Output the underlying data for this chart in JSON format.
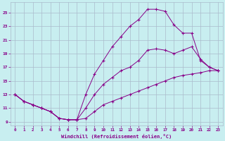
{
  "bg_color": "#c8eef0",
  "line_color": "#880088",
  "grid_color": "#aabbcc",
  "xlabel": "Windchill (Refroidissement éolien,°C)",
  "ylabel_ticks": [
    9,
    11,
    13,
    15,
    17,
    19,
    21,
    23,
    25
  ],
  "xlabel_ticks": [
    0,
    1,
    2,
    3,
    4,
    5,
    6,
    7,
    8,
    9,
    10,
    11,
    12,
    13,
    14,
    15,
    16,
    17,
    18,
    19,
    20,
    21,
    22,
    23
  ],
  "xlim": [
    -0.5,
    23.5
  ],
  "ylim": [
    8.5,
    26.5
  ],
  "curves": [
    {
      "x": [
        0,
        1,
        2,
        3,
        4,
        5,
        6,
        7,
        8,
        9,
        10,
        11,
        12,
        13,
        14,
        15,
        16,
        17,
        18,
        19,
        20,
        21,
        22,
        23
      ],
      "y": [
        13,
        12,
        11.5,
        11,
        10.5,
        9.5,
        9.3,
        9.3,
        13,
        16,
        18,
        20,
        21.5,
        23,
        24,
        25.5,
        25.5,
        25.2,
        23.2,
        22,
        22,
        18,
        17,
        16.5
      ]
    },
    {
      "x": [
        0,
        1,
        2,
        3,
        4,
        5,
        6,
        7,
        8,
        9,
        10,
        11,
        12,
        13,
        14,
        15,
        16,
        17,
        18,
        19,
        20,
        21,
        22,
        23
      ],
      "y": [
        13,
        12,
        11.5,
        11,
        10.5,
        9.5,
        9.3,
        9.3,
        11,
        13,
        14.5,
        15.5,
        16.5,
        17,
        18,
        19.5,
        19.7,
        19.5,
        19,
        19.5,
        20,
        18.2,
        17,
        16.5
      ]
    },
    {
      "x": [
        0,
        1,
        2,
        3,
        4,
        5,
        6,
        7,
        8,
        9,
        10,
        11,
        12,
        13,
        14,
        15,
        16,
        17,
        18,
        19,
        20,
        21,
        22,
        23
      ],
      "y": [
        13,
        12,
        11.5,
        11,
        10.5,
        9.5,
        9.3,
        9.3,
        9.5,
        10.5,
        11.5,
        12,
        12.5,
        13,
        13.5,
        14,
        14.5,
        15,
        15.5,
        15.8,
        16,
        16.2,
        16.5,
        16.5
      ]
    }
  ]
}
